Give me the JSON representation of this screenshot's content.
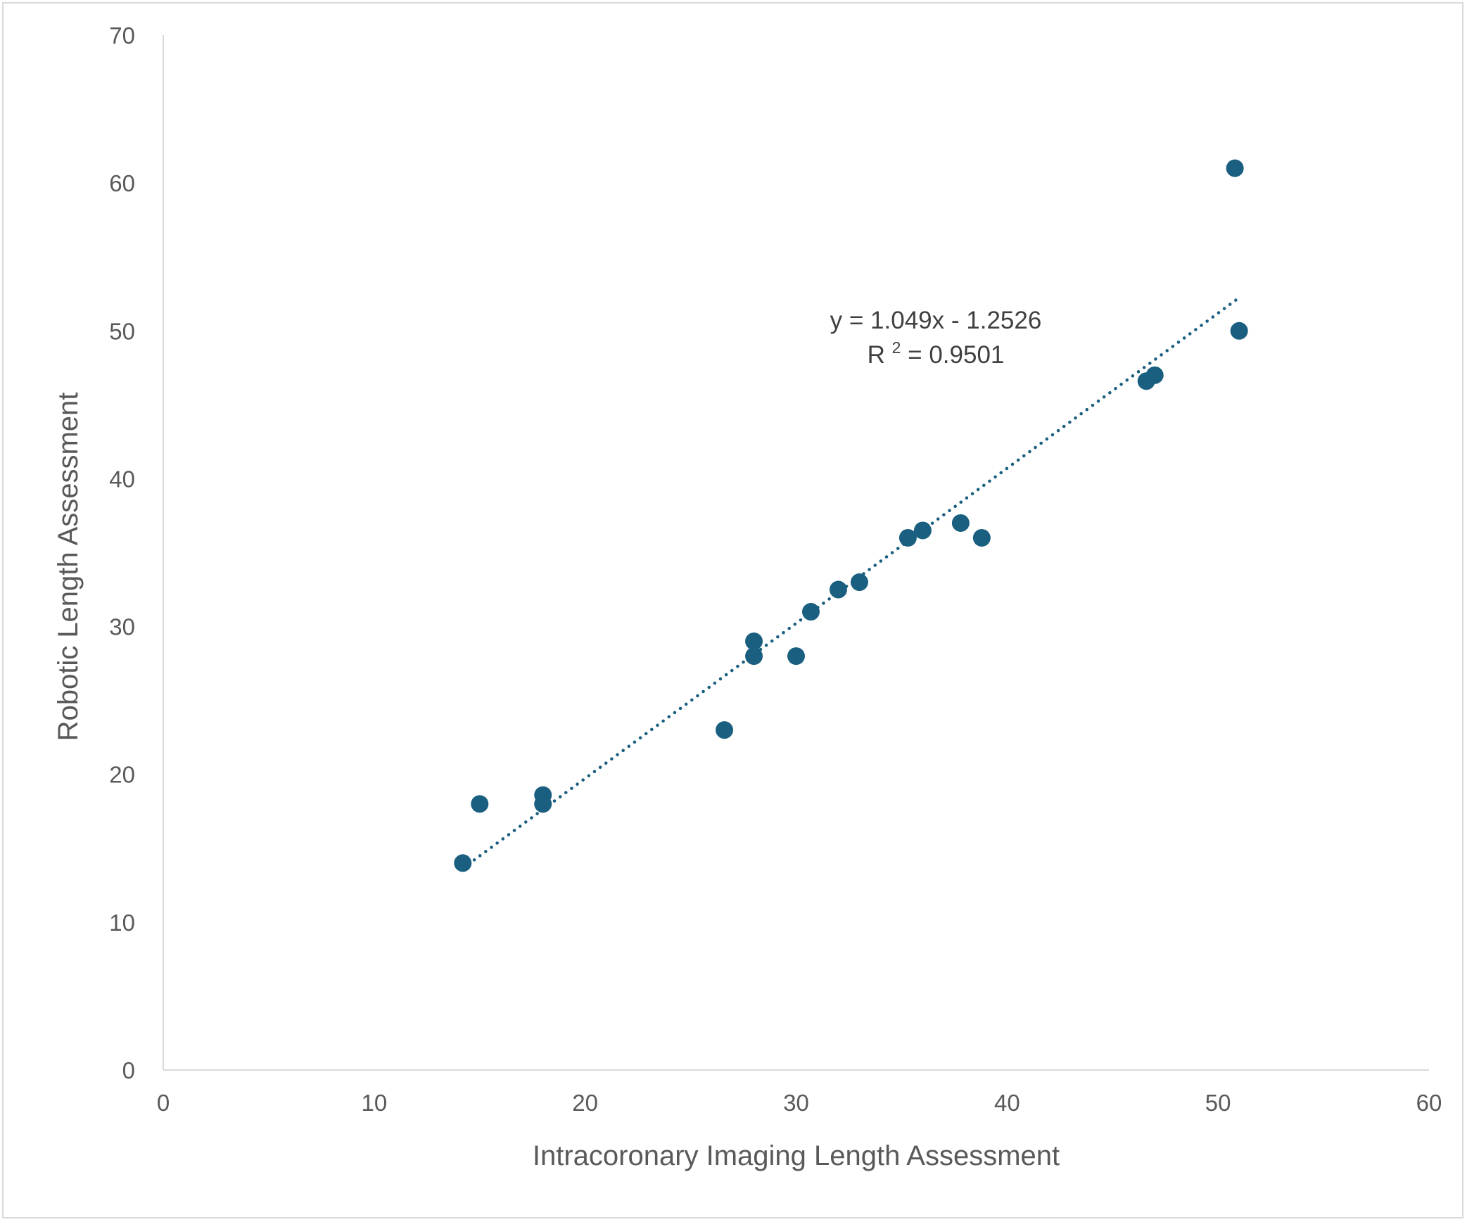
{
  "chart_data": {
    "type": "scatter",
    "title": "",
    "xlabel": "Intracoronary Imaging Length Assessment",
    "ylabel": "Robotic Length Assessment",
    "xlim": [
      0,
      60
    ],
    "ylim": [
      0,
      70
    ],
    "x_ticks": [
      "0",
      "10",
      "20",
      "30",
      "40",
      "50",
      "60"
    ],
    "y_ticks": [
      "0",
      "10",
      "20",
      "30",
      "40",
      "50",
      "60",
      "70"
    ],
    "grid": false,
    "legend": "none",
    "marker_color": "#1a5f7f",
    "trendline_color": "#1a5f7f",
    "points": [
      {
        "x": 14.2,
        "y": 14.0
      },
      {
        "x": 15.0,
        "y": 18.0
      },
      {
        "x": 18.0,
        "y": 18.6
      },
      {
        "x": 18.0,
        "y": 18.0
      },
      {
        "x": 26.6,
        "y": 23.0
      },
      {
        "x": 28.0,
        "y": 29.0
      },
      {
        "x": 28.0,
        "y": 28.0
      },
      {
        "x": 30.0,
        "y": 28.0
      },
      {
        "x": 30.7,
        "y": 31.0
      },
      {
        "x": 32.0,
        "y": 32.5
      },
      {
        "x": 33.0,
        "y": 33.0
      },
      {
        "x": 35.3,
        "y": 36.0
      },
      {
        "x": 36.0,
        "y": 36.5
      },
      {
        "x": 37.8,
        "y": 37.0
      },
      {
        "x": 38.8,
        "y": 36.0
      },
      {
        "x": 46.6,
        "y": 46.6
      },
      {
        "x": 47.0,
        "y": 47.0
      },
      {
        "x": 50.8,
        "y": 61.0
      },
      {
        "x": 51.0,
        "y": 50.0
      }
    ],
    "trendline": {
      "type": "linear",
      "slope": 1.049,
      "intercept": -1.2526,
      "x_range": [
        14.2,
        51.0
      ],
      "equation_label": "y = 1.049x - 1.2526",
      "r2_prefix": "R",
      "r2_superscript": "2",
      "r2_value_text": " = 0.9501"
    }
  }
}
